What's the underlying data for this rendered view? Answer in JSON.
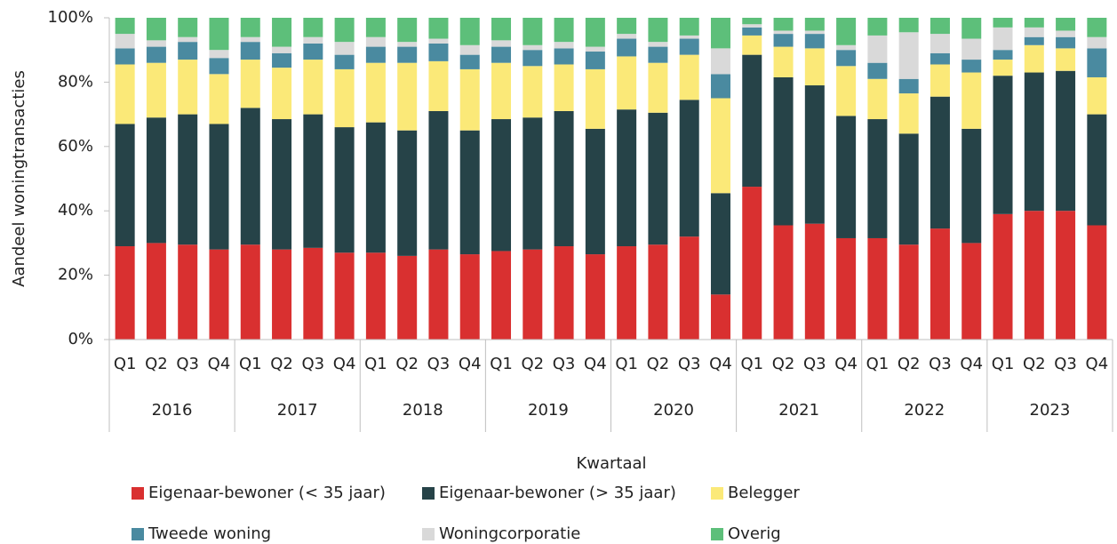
{
  "chart_data": {
    "type": "stacked_bar",
    "y_label": "Aandeel woningtransacties",
    "x_label": "Kwartaal",
    "categories": [
      "Q1",
      "Q2",
      "Q3",
      "Q4",
      "Q1",
      "Q2",
      "Q3",
      "Q4",
      "Q1",
      "Q2",
      "Q3",
      "Q4",
      "Q1",
      "Q2",
      "Q3",
      "Q4",
      "Q1",
      "Q2",
      "Q3",
      "Q4",
      "Q1",
      "Q2",
      "Q3",
      "Q4",
      "Q1",
      "Q2",
      "Q3",
      "Q4",
      "Q1",
      "Q2",
      "Q3",
      "Q4"
    ],
    "category_groups": [
      "2016",
      "2017",
      "2018",
      "2019",
      "2020",
      "2021",
      "2022",
      "2023"
    ],
    "ylim": [
      0,
      100
    ],
    "yticks": [
      {
        "value": 0,
        "label": "0%"
      },
      {
        "value": 20,
        "label": "20%"
      },
      {
        "value": 40,
        "label": "40%"
      },
      {
        "value": 60,
        "label": "60%"
      },
      {
        "value": 80,
        "label": "80%"
      },
      {
        "value": 100,
        "label": "100%"
      }
    ],
    "legend": "bottom",
    "series": [
      {
        "name": "Eigenaar-bewoner (< 35 jaar)",
        "color": "#d93030",
        "values": [
          29,
          30,
          29.5,
          28,
          29.5,
          28,
          28.5,
          27,
          27,
          26,
          28,
          26.5,
          27.5,
          28,
          29,
          26.5,
          29,
          29.5,
          32,
          14,
          47.5,
          35.5,
          36,
          31.5,
          31.5,
          29.5,
          34.5,
          30,
          39,
          40,
          40,
          35.5
        ]
      },
      {
        "name": "Eigenaar-bewoner (> 35 jaar)",
        "color": "#264348",
        "values": [
          38,
          39,
          40.5,
          39,
          42.5,
          40.5,
          41.5,
          39,
          40.5,
          39,
          43,
          38.5,
          41,
          41,
          42,
          39,
          42.5,
          41,
          42.5,
          31.5,
          41,
          46,
          43,
          38,
          37,
          34.5,
          41,
          35.5,
          43,
          43,
          43.5,
          34.5
        ]
      },
      {
        "name": "Belegger",
        "color": "#fbe978",
        "values": [
          18.5,
          17,
          17,
          15.5,
          15,
          16,
          17,
          18,
          18.5,
          21,
          15.5,
          19,
          17.5,
          16,
          14.5,
          18.5,
          16.5,
          15.5,
          14,
          29.5,
          6,
          9.5,
          11.5,
          15.5,
          12.5,
          12.5,
          10,
          17.5,
          5,
          8.5,
          7,
          11.5
        ]
      },
      {
        "name": "Tweede woning",
        "color": "#4a8aa0",
        "values": [
          5,
          5,
          5.5,
          5,
          5.5,
          4.5,
          5,
          4.5,
          5,
          5,
          5.5,
          4.5,
          5,
          5,
          5,
          5.5,
          5.5,
          5,
          5,
          7.5,
          2.5,
          4,
          4.5,
          5,
          5,
          4.5,
          3.5,
          4,
          3,
          2.5,
          3.5,
          9
        ]
      },
      {
        "name": "Woningcorporatie",
        "color": "#d9d9d9",
        "values": [
          4.5,
          2,
          1.5,
          2.5,
          1.5,
          2,
          2,
          4,
          3,
          1.5,
          1.5,
          3,
          2,
          1.5,
          2,
          1.5,
          1.5,
          1.5,
          1,
          8,
          1,
          1,
          1,
          1.5,
          8.5,
          14.5,
          6,
          6.5,
          7,
          3,
          2,
          3.5
        ]
      },
      {
        "name": "Overig",
        "color": "#5dbf7a",
        "values": [
          5,
          7,
          6,
          10,
          6,
          9,
          6,
          7.5,
          6,
          7.5,
          6.5,
          8.5,
          7,
          8.5,
          7.5,
          9,
          5,
          7.5,
          5.5,
          9.5,
          2,
          4,
          4,
          8.5,
          5.5,
          4.5,
          5,
          6.5,
          3,
          3,
          4,
          6
        ]
      }
    ]
  }
}
